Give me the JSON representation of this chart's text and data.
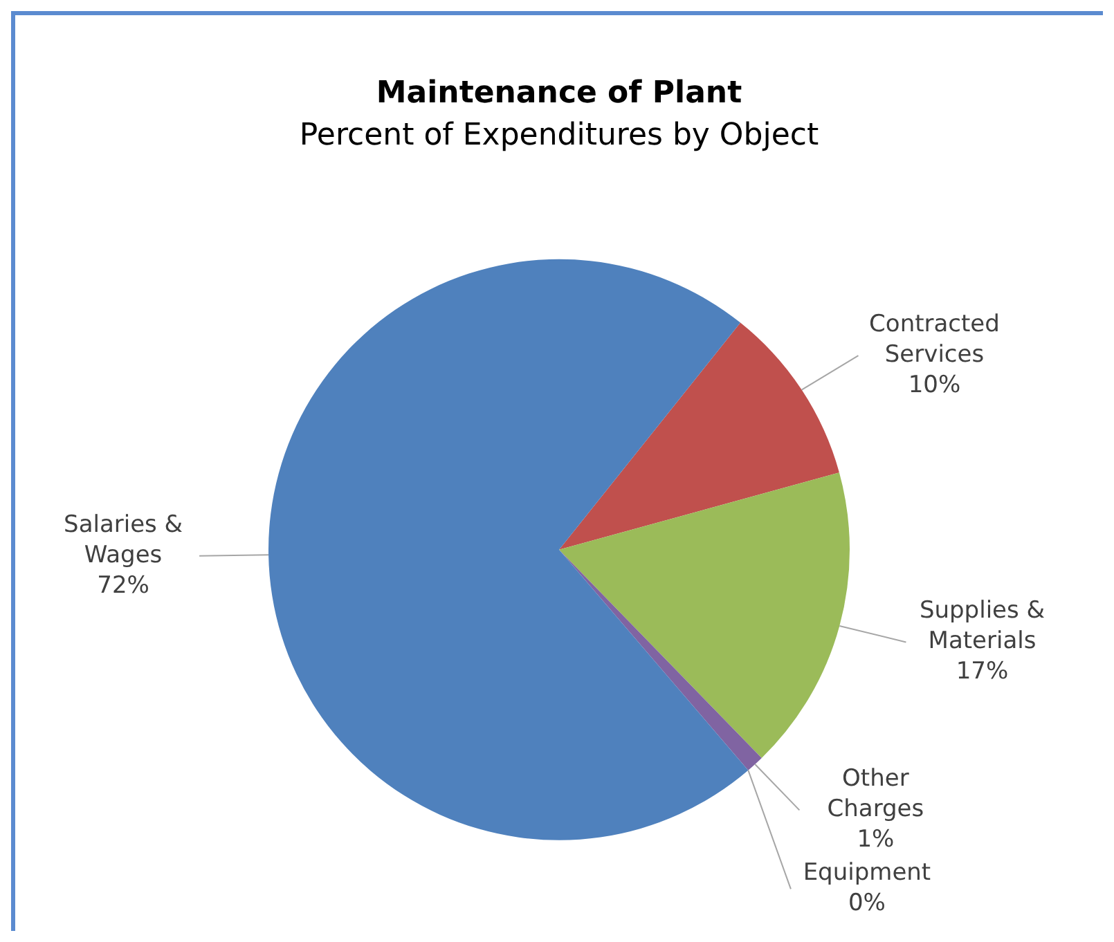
{
  "chart_data": {
    "type": "pie",
    "title": "Maintenance of Plant",
    "subtitle": "Percent of Expenditures by Object",
    "categories": [
      "Contracted Services",
      "Supplies & Materials",
      "Other Charges",
      "Equipment",
      "Salaries & Wages"
    ],
    "values": [
      10,
      17,
      1,
      0,
      72
    ],
    "colors": [
      "#c0504d",
      "#9bbb59",
      "#8064a2",
      "#4bacc6",
      "#4f81bd"
    ],
    "value_labels": [
      "10%",
      "17%",
      "1%",
      "0%",
      "72%"
    ],
    "legend": false
  }
}
